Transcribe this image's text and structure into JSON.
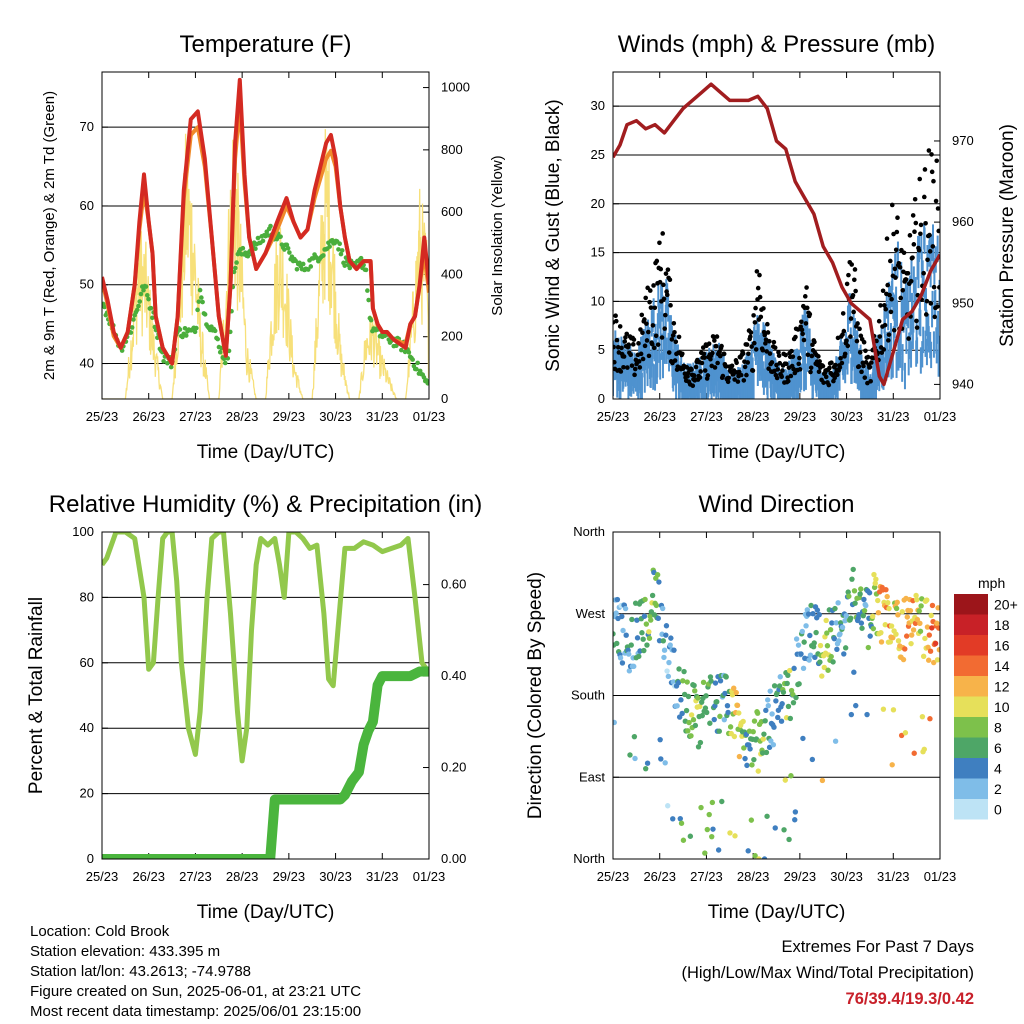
{
  "colors": {
    "temp2m": "#d42a22",
    "temp9m": "#f08a2a",
    "dewpoint": "#4aae3c",
    "solar": "#f7e07a",
    "wind": "#4f92cf",
    "gust": "#000000",
    "pressure": "#a11d1f",
    "rh": "#92c84c",
    "precip": "#4ab53d",
    "extremes": "#c8202a"
  },
  "chart_data": [
    {
      "type": "line",
      "title": "Temperature (F)",
      "xlabel": "Time (Day/UTC)",
      "ylabel": "2m & 9m T (Red, Orange) & 2m Td (Green)",
      "ylabel_right": "Solar Insolation (Yellow)",
      "x_ticks": [
        "25/23",
        "26/23",
        "27/23",
        "28/23",
        "29/23",
        "30/23",
        "31/23",
        "01/23"
      ],
      "xlim": [
        0,
        7
      ],
      "ylim": [
        35.5,
        77
      ],
      "y_ticks": [
        40,
        50,
        60,
        70
      ],
      "ylim_right": [
        0,
        1050
      ],
      "y_ticks_right": [
        0,
        200,
        400,
        600,
        800,
        1000
      ],
      "grid": true,
      "series": [
        {
          "x": [
            0,
            0.12,
            0.25,
            0.4,
            0.55,
            0.7,
            0.8,
            0.9,
            1,
            1.08,
            1.15,
            1.3,
            1.5,
            1.62,
            1.75,
            1.9,
            2.05,
            2.2,
            2.35,
            2.5,
            2.65,
            2.75,
            2.85,
            2.95,
            3.05,
            3.15,
            3.3,
            3.5,
            3.75,
            3.95,
            4.1,
            4.25,
            4.4,
            4.55,
            4.8,
            4.9,
            5,
            5.1,
            5.2,
            5.3,
            5.45,
            5.6,
            5.75,
            5.8,
            5.9,
            6,
            6.1,
            6.25,
            6.5,
            6.6,
            6.7,
            6.8,
            6.9,
            7
          ],
          "values": [
            51,
            48,
            44,
            42,
            44,
            50,
            58,
            64,
            58,
            54,
            46,
            42,
            40,
            46,
            62,
            71,
            72,
            66,
            56,
            46,
            41,
            50,
            68,
            76,
            64,
            56,
            52,
            54,
            58,
            61,
            58,
            56,
            57,
            62,
            68,
            69,
            66,
            60,
            56,
            53,
            52,
            53,
            53,
            47,
            45,
            44,
            44,
            43,
            42,
            45,
            46,
            50,
            56,
            50
          ]
        },
        {
          "x": [
            0,
            0.12,
            0.25,
            0.4,
            0.55,
            0.7,
            0.8,
            0.9,
            1,
            1.08,
            1.15,
            1.3,
            1.5,
            1.62,
            1.75,
            1.9,
            2.05,
            2.2,
            2.35,
            2.5,
            2.65,
            2.75,
            2.85,
            2.95,
            3.05,
            3.15,
            3.3,
            3.5,
            3.75,
            3.95,
            4.1,
            4.25,
            4.4,
            4.55,
            4.8,
            4.9,
            5,
            5.1,
            5.2,
            5.3,
            5.45,
            5.6,
            5.75,
            5.8,
            5.9,
            6,
            6.1,
            6.25,
            6.5,
            6.6,
            6.7,
            6.8,
            6.9,
            7
          ],
          "values": [
            50.5,
            47.5,
            43.5,
            42,
            44,
            50,
            57,
            62,
            58,
            54,
            46,
            42,
            40,
            46,
            61,
            69,
            70,
            65,
            56,
            46,
            41,
            50,
            66,
            73,
            63,
            56,
            52,
            54,
            57,
            60,
            58,
            56,
            57,
            61,
            66,
            67,
            65,
            60,
            56,
            53,
            52,
            53,
            53,
            47,
            45,
            44,
            44,
            43,
            42.5,
            45,
            46,
            50,
            54,
            49
          ]
        },
        {
          "x": [
            0,
            0.2,
            0.4,
            0.6,
            0.8,
            0.9,
            1,
            1.1,
            1.3,
            1.5,
            1.6,
            1.7,
            1.85,
            2,
            2.1,
            2.2,
            2.4,
            2.6,
            2.7,
            2.8,
            2.9,
            3.1,
            3.3,
            3.6,
            3.9,
            4.1,
            4.3,
            4.5,
            4.7,
            4.85,
            5,
            5.2,
            5.4,
            5.55,
            5.65,
            5.75,
            5.85,
            6.2,
            6.5,
            6.7,
            6.9,
            7
          ],
          "values": [
            48,
            45,
            42,
            44,
            48,
            50,
            48,
            46,
            41,
            40,
            44,
            44,
            44,
            44,
            50,
            46,
            44,
            41,
            40,
            50,
            54,
            54,
            55,
            57,
            55,
            53,
            52,
            53,
            54,
            55,
            56,
            53,
            52,
            53,
            52,
            45,
            44,
            43,
            42,
            40,
            38,
            37
          ]
        },
        {
          "x": [
            0,
            0.3,
            0.5,
            0.65,
            0.8,
            0.95,
            1.1,
            1.3,
            1.5,
            1.65,
            1.8,
            1.95,
            2.1,
            2.3,
            2.5,
            2.65,
            2.8,
            2.95,
            3.1,
            3.3,
            3.5,
            3.65,
            3.8,
            3.95,
            4.1,
            4.3,
            4.5,
            4.65,
            4.8,
            4.95,
            5.1,
            5.3,
            5.5,
            5.65,
            5.8,
            5.95,
            6.1,
            6.3,
            6.5,
            6.65,
            6.8,
            6.95,
            7
          ],
          "values": [
            0,
            0,
            0,
            300,
            600,
            500,
            250,
            0,
            0,
            400,
            900,
            700,
            300,
            0,
            0,
            450,
            950,
            650,
            200,
            0,
            0,
            400,
            650,
            450,
            150,
            0,
            0,
            500,
            950,
            600,
            200,
            0,
            0,
            250,
            300,
            180,
            100,
            0,
            0,
            350,
            700,
            550,
            100
          ]
        }
      ],
      "legend": "none"
    },
    {
      "type": "scatter",
      "title": "Winds (mph) & Pressure (mb)",
      "xlabel": "Time (Day/UTC)",
      "ylabel": "Sonic Wind & Gust (Blue, Black)",
      "ylabel_right": "Station Pressure (Maroon)",
      "x_ticks": [
        "25/23",
        "26/23",
        "27/23",
        "28/23",
        "29/23",
        "30/23",
        "31/23",
        "01/23"
      ],
      "xlim": [
        0,
        7
      ],
      "ylim": [
        0,
        33.5
      ],
      "y_ticks": [
        0,
        5,
        10,
        15,
        20,
        25,
        30
      ],
      "ylim_right": [
        938.2,
        978.5
      ],
      "y_ticks_right": [
        940,
        950,
        960,
        970
      ],
      "grid": true,
      "series": [
        {
          "x": [
            0,
            0.25,
            0.5,
            0.75,
            1,
            1.1,
            1.25,
            1.5,
            1.6,
            1.75,
            2,
            2.25,
            2.5,
            2.75,
            3,
            3.1,
            3.25,
            3.5,
            3.75,
            4,
            4.1,
            4.25,
            4.5,
            4.75,
            5,
            5.1,
            5.25,
            5.5,
            5.75,
            6,
            6.1,
            6.25,
            6.5,
            6.75,
            7
          ],
          "values": [
            5,
            4,
            3,
            6,
            9,
            10,
            6,
            2,
            2,
            2,
            3,
            4,
            1,
            2,
            4,
            9,
            5,
            2,
            2,
            4,
            8,
            4,
            1,
            2,
            6,
            10,
            4,
            1,
            6,
            11,
            12,
            8,
            12,
            14,
            12
          ]
        },
        {
          "x": [
            0,
            0.25,
            0.5,
            0.75,
            1,
            1.1,
            1.25,
            1.5,
            1.6,
            1.75,
            2,
            2.25,
            2.5,
            2.75,
            3,
            3.1,
            3.25,
            3.5,
            3.75,
            4,
            4.1,
            4.25,
            4.5,
            4.75,
            5,
            5.1,
            5.25,
            5.5,
            5.75,
            6,
            6.1,
            6.25,
            6.5,
            6.75,
            7
          ],
          "values": [
            8,
            6,
            5,
            10,
            14,
            15,
            9,
            4,
            4,
            3,
            5,
            6,
            3,
            4,
            7,
            15,
            8,
            4,
            4,
            7,
            12,
            6,
            3,
            4,
            10,
            16,
            7,
            3,
            10,
            18,
            16,
            12,
            18,
            22,
            20
          ]
        },
        {
          "x": [
            0,
            0.15,
            0.3,
            0.5,
            0.7,
            0.9,
            1.1,
            1.3,
            1.5,
            1.7,
            1.9,
            2.1,
            2.3,
            2.5,
            2.7,
            2.9,
            3.1,
            3.3,
            3.5,
            3.7,
            3.9,
            4.1,
            4.3,
            4.5,
            4.7,
            4.9,
            5.1,
            5.3,
            5.5,
            5.7,
            5.8,
            6,
            6.2,
            6.4,
            6.6,
            6.8,
            7
          ],
          "values": [
            968,
            969.5,
            972,
            972.5,
            971.5,
            972,
            971,
            972.5,
            974,
            975,
            976,
            977,
            976,
            975,
            975,
            975,
            975.5,
            974,
            970,
            969,
            965,
            963,
            961,
            957,
            955,
            952,
            950,
            949,
            948,
            941,
            940,
            944,
            948,
            949,
            951,
            954,
            956
          ]
        }
      ],
      "legend": "none"
    },
    {
      "type": "line",
      "title": "Relative Humidity (%) & Precipitation (in)",
      "xlabel": "Time (Day/UTC)",
      "ylabel": "Percent & Total Rainfall",
      "x_ticks": [
        "25/23",
        "26/23",
        "27/23",
        "28/23",
        "29/23",
        "30/23",
        "31/23",
        "01/23"
      ],
      "xlim": [
        0,
        7
      ],
      "ylim": [
        0,
        100
      ],
      "y_ticks": [
        0,
        20,
        40,
        60,
        80,
        100
      ],
      "ylim_right": [
        0,
        0.715
      ],
      "y_ticks_right": [
        "0.00",
        "0.20",
        "0.40",
        "0.60"
      ],
      "grid": true,
      "series": [
        {
          "x": [
            0,
            0.1,
            0.3,
            0.5,
            0.7,
            0.9,
            1,
            1.1,
            1.2,
            1.3,
            1.4,
            1.5,
            1.6,
            1.7,
            1.85,
            2,
            2.1,
            2.25,
            2.35,
            2.5,
            2.6,
            2.75,
            2.9,
            3,
            3.1,
            3.2,
            3.3,
            3.4,
            3.55,
            3.7,
            3.8,
            3.9,
            4,
            4.15,
            4.3,
            4.45,
            4.6,
            4.75,
            4.85,
            4.95,
            5.05,
            5.2,
            5.4,
            5.6,
            5.8,
            6,
            6.2,
            6.4,
            6.55,
            6.7,
            6.85,
            7
          ],
          "values": [
            90,
            92,
            100,
            100,
            98,
            80,
            58,
            60,
            80,
            98,
            100,
            100,
            85,
            60,
            40,
            32,
            45,
            80,
            98,
            100,
            100,
            75,
            45,
            30,
            40,
            70,
            90,
            98,
            96,
            98,
            90,
            80,
            100,
            100,
            98,
            95,
            96,
            75,
            55,
            53,
            70,
            95,
            95,
            97,
            96,
            94,
            95,
            96,
            98,
            80,
            60,
            57
          ]
        },
        {
          "x": [
            0,
            0.5,
            1,
            1.5,
            2,
            2.5,
            3,
            3.3,
            3.5,
            3.6,
            3.7,
            3.9,
            4.2,
            4.5,
            4.8,
            5,
            5.1,
            5.2,
            5.35,
            5.5,
            5.6,
            5.7,
            5.8,
            5.9,
            6,
            6.1,
            6.3,
            6.6,
            6.8,
            7
          ],
          "values": [
            0,
            0,
            0,
            0,
            0,
            0,
            0,
            0,
            0,
            0,
            0.13,
            0.13,
            0.13,
            0.13,
            0.13,
            0.13,
            0.13,
            0.14,
            0.17,
            0.19,
            0.25,
            0.28,
            0.3,
            0.38,
            0.4,
            0.4,
            0.4,
            0.4,
            0.41,
            0.41
          ]
        }
      ],
      "legend": "none"
    },
    {
      "type": "scatter",
      "title": "Wind Direction",
      "xlabel": "Time (Day/UTC)",
      "ylabel": "Direction (Colored By Speed)",
      "x_ticks": [
        "25/23",
        "26/23",
        "27/23",
        "28/23",
        "29/23",
        "30/23",
        "31/23",
        "01/23"
      ],
      "xlim": [
        0,
        7
      ],
      "ylim": [
        0,
        360
      ],
      "y_ticks": [
        "North",
        "East",
        "South",
        "West",
        "North"
      ],
      "grid": true,
      "colorbar_title": "mph",
      "colorbar_labels": [
        "0",
        "2",
        "4",
        "6",
        "8",
        "10",
        "12",
        "14",
        "16",
        "18",
        "20+"
      ],
      "colorbar_colors": [
        "#bde3f5",
        "#7fbde8",
        "#3f7fc0",
        "#4ea667",
        "#7dc14b",
        "#e6e05a",
        "#f7b34a",
        "#f26b32",
        "#e23b26",
        "#c82127",
        "#9c151a"
      ],
      "series": [
        {
          "x": [
            0.05,
            0.2,
            0.35,
            0.5,
            0.65,
            0.8,
            0.9,
            1.1,
            1.3,
            1.5,
            1.7,
            1.85,
            2,
            2.2,
            2.4,
            2.55,
            2.7,
            2.85,
            3,
            3.15,
            3.3,
            3.5,
            3.65,
            3.8,
            3.95,
            4.1,
            4.3,
            4.5,
            4.65,
            4.8,
            5,
            5.15,
            5.3,
            5.45,
            5.6,
            5.75,
            5.9,
            6.05,
            6.2,
            6.4,
            6.6,
            6.8,
            6.95
          ],
          "values": [
            260,
            250,
            240,
            250,
            260,
            280,
            300,
            230,
            200,
            180,
            160,
            150,
            180,
            175,
            170,
            160,
            140,
            130,
            140,
            120,
            150,
            165,
            175,
            190,
            210,
            240,
            250,
            230,
            245,
            250,
            260,
            300,
            280,
            260,
            290,
            270,
            265,
            255,
            250,
            260,
            255,
            250,
            245
          ],
          "speeds": [
            4,
            3,
            4,
            5,
            6,
            8,
            7,
            3,
            2,
            6,
            8,
            8,
            7,
            6,
            5,
            9,
            11,
            6,
            8,
            9,
            5,
            4,
            7,
            9,
            4,
            4,
            5,
            10,
            8,
            4,
            5,
            7,
            6,
            5,
            9,
            13,
            12,
            10,
            12,
            13,
            11,
            13,
            14
          ]
        }
      ],
      "legend": "colorbar right"
    }
  ],
  "footer": {
    "location": "Location: Cold Brook",
    "elevation": "Station elevation: 433.395 m",
    "latlon": "Station lat/lon: 43.2613; -74.9788",
    "created": "Figure created on Sun, 2025-06-01, at 23:21 UTC",
    "timestamp": "Most recent data timestamp: 2025/06/01 23:15:00",
    "extremes_title": "Extremes For Past 7 Days",
    "extremes_subtitle": "(High/Low/Max Wind/Total Precipitation)",
    "extremes_values": "76/39.4/19.3/0.42"
  }
}
